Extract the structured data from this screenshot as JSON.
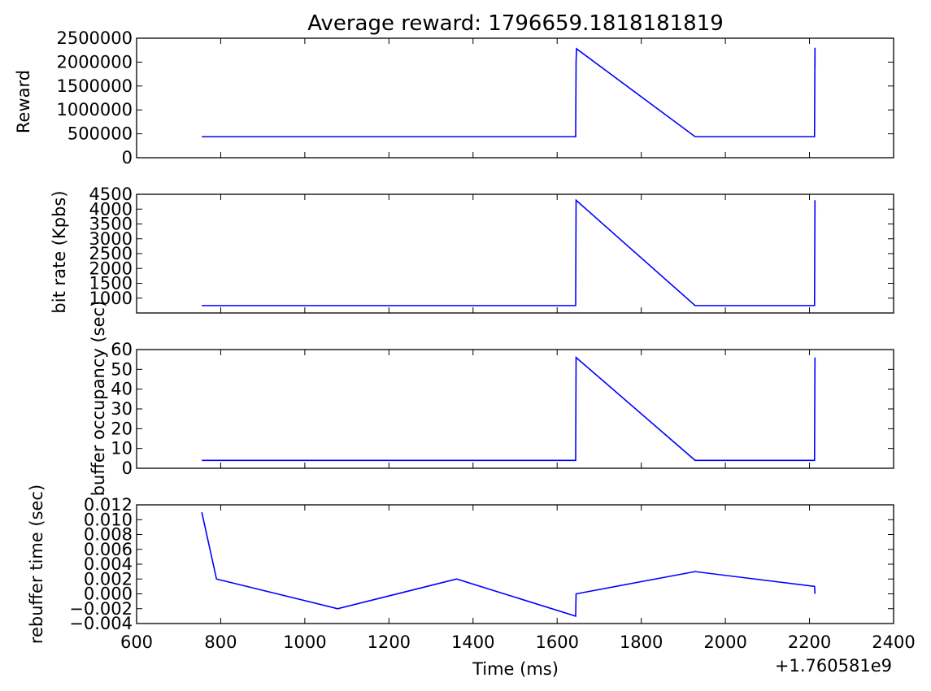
{
  "chart_data": {
    "type": "line",
    "title": "Average reward: 1796659.1818181819",
    "xlabel": "Time (ms)",
    "x_offset_label": "+1.760581e9",
    "xlim": [
      600,
      2400
    ],
    "x_ticks": [
      "600",
      "800",
      "1000",
      "1200",
      "1400",
      "1600",
      "1800",
      "2000",
      "2200",
      "2400"
    ],
    "grid": false,
    "color": "#0000ff",
    "panels": [
      {
        "ylabel": "Reward",
        "ylim": [
          0,
          2500000
        ],
        "y_ticks": [
          0,
          500000,
          1000000,
          1500000,
          2000000,
          2500000
        ],
        "y_tick_labels": [
          "0",
          "500000",
          "1000000",
          "1500000",
          "2000000",
          "2500000"
        ],
        "series": [
          {
            "x": [
              755,
              1644,
              1645,
              1646,
              1928,
              2212,
              2213,
              2213,
              2213
            ],
            "y": [
              440000,
              440000,
              2000000,
              2280000,
              440000,
              440000,
              2300000,
              1900000,
              2300000
            ]
          }
        ]
      },
      {
        "ylabel": "bit rate (Kpbs)",
        "ylim": [
          500,
          4500
        ],
        "y_ticks": [
          1000,
          1500,
          2000,
          2500,
          3000,
          3500,
          4000,
          4500
        ],
        "y_tick_labels": [
          "1000",
          "1500",
          "2000",
          "2500",
          "3000",
          "3500",
          "4000",
          "4500"
        ],
        "series": [
          {
            "x": [
              755,
              1644,
              1645,
              1928,
              2212,
              2213
            ],
            "y": [
              750,
              750,
              4300,
              750,
              750,
              4300
            ]
          }
        ]
      },
      {
        "ylabel": "buffer occupancy (sec)",
        "ylim": [
          0,
          60
        ],
        "y_ticks": [
          0,
          10,
          20,
          30,
          40,
          50,
          60
        ],
        "y_tick_labels": [
          "0",
          "10",
          "20",
          "30",
          "40",
          "50",
          "60"
        ],
        "series": [
          {
            "x": [
              755,
              1644,
              1645,
              1928,
              2212,
              2213
            ],
            "y": [
              4,
              4,
              56,
              4,
              4,
              56
            ]
          }
        ]
      },
      {
        "ylabel": "rebuffer time (sec)",
        "ylim": [
          -0.004,
          0.012
        ],
        "y_ticks": [
          -0.004,
          -0.002,
          0.0,
          0.002,
          0.004,
          0.006,
          0.008,
          0.01,
          0.012
        ],
        "y_tick_labels": [
          "−0.004",
          "−0.002",
          "0.000",
          "0.002",
          "0.004",
          "0.006",
          "0.008",
          "0.010",
          "0.012"
        ],
        "series": [
          {
            "x": [
              755,
              790,
              1078,
              1361,
              1644,
              1645,
              1928,
              2212,
              2213
            ],
            "y": [
              0.011,
              0.002,
              -0.002,
              0.002,
              -0.003,
              0.0,
              0.003,
              0.001,
              0.0
            ]
          }
        ]
      }
    ]
  }
}
